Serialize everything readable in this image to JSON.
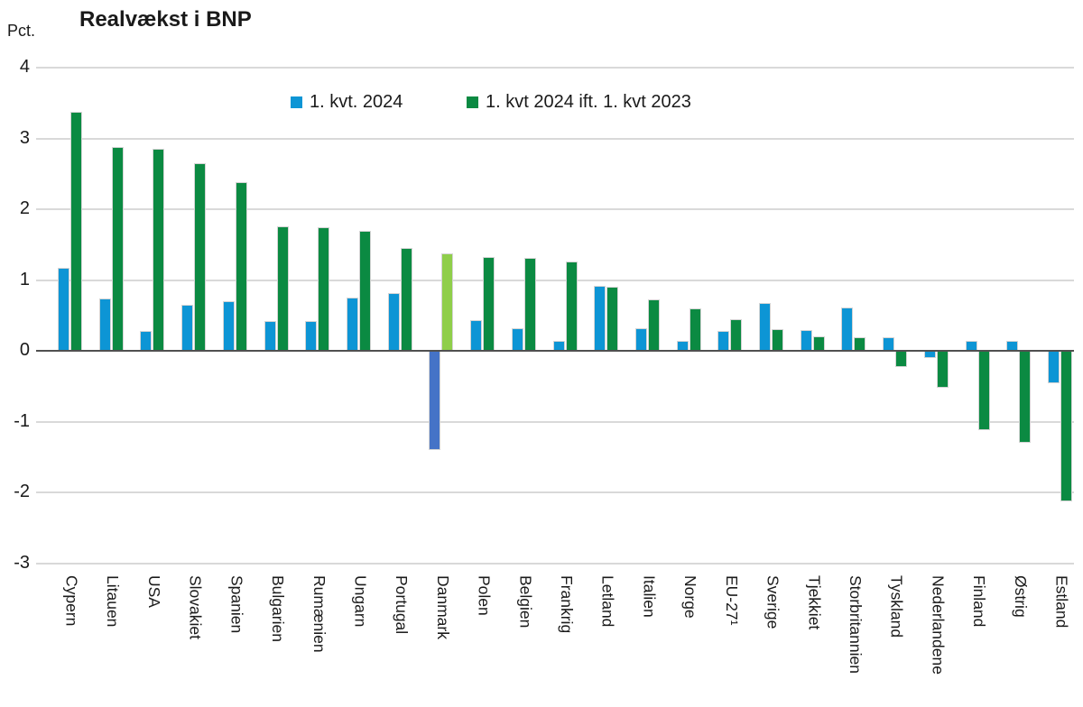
{
  "title": "Realvækst i BNP",
  "unit_label": "Pct.",
  "legend": [
    {
      "label": "1. kvt. 2024",
      "color": "#0d95d5"
    },
    {
      "label": "1. kvt 2024 ift. 1. kvt 2023",
      "color": "#0b8a42"
    }
  ],
  "colors": {
    "series_q1_blue": "#0d95d5",
    "series_yoy_green": "#0b8a42",
    "highlight_blue": "#4573c7",
    "highlight_green": "#8fce4a",
    "gridline": "#d9d9d9",
    "zero_axis": "#505050"
  },
  "chart_data": {
    "type": "bar",
    "title": "Realvækst i BNP",
    "ylabel": "Pct.",
    "xlabel": "",
    "ylim": [
      -3,
      4
    ],
    "yticks": [
      4,
      3,
      2,
      1,
      0,
      -1,
      -2,
      -3
    ],
    "grid": true,
    "legend_position": "top-center",
    "categories": [
      "Cypern",
      "Litauen",
      "USA",
      "Slovakiet",
      "Spanien",
      "Bulgarien",
      "Rumænien",
      "Ungarn",
      "Portugal",
      "Danmark",
      "Polen",
      "Belgien",
      "Frankrig",
      "Letland",
      "Italien",
      "Norge",
      "EU-27¹",
      "Sverige",
      "Tjekkiet",
      "Storbritannien",
      "Tyskland",
      "Nederlandene",
      "Finland",
      "Østrig",
      "Estland"
    ],
    "series": [
      {
        "name": "1. kvt. 2024",
        "color": "#0d95d5",
        "values": [
          1.17,
          0.74,
          0.29,
          0.65,
          0.7,
          0.43,
          0.43,
          0.76,
          0.82,
          -1.39,
          0.44,
          0.32,
          0.14,
          0.92,
          0.32,
          0.14,
          0.28,
          0.68,
          0.3,
          0.61,
          0.19,
          -0.1,
          0.14,
          0.14,
          -0.46
        ]
      },
      {
        "name": "1. kvt 2024 ift. 1. kvt 2023",
        "color": "#0b8a42",
        "values": [
          3.38,
          2.88,
          2.86,
          2.65,
          2.39,
          1.76,
          1.75,
          1.7,
          1.45,
          1.38,
          1.33,
          1.31,
          1.26,
          0.91,
          0.73,
          0.6,
          0.45,
          0.31,
          0.21,
          0.19,
          -0.22,
          -0.52,
          -1.11,
          -1.29,
          -2.12
        ]
      }
    ],
    "highlight": {
      "category": "Danmark",
      "series_colors": [
        "#4573c7",
        "#8fce4a"
      ]
    }
  }
}
